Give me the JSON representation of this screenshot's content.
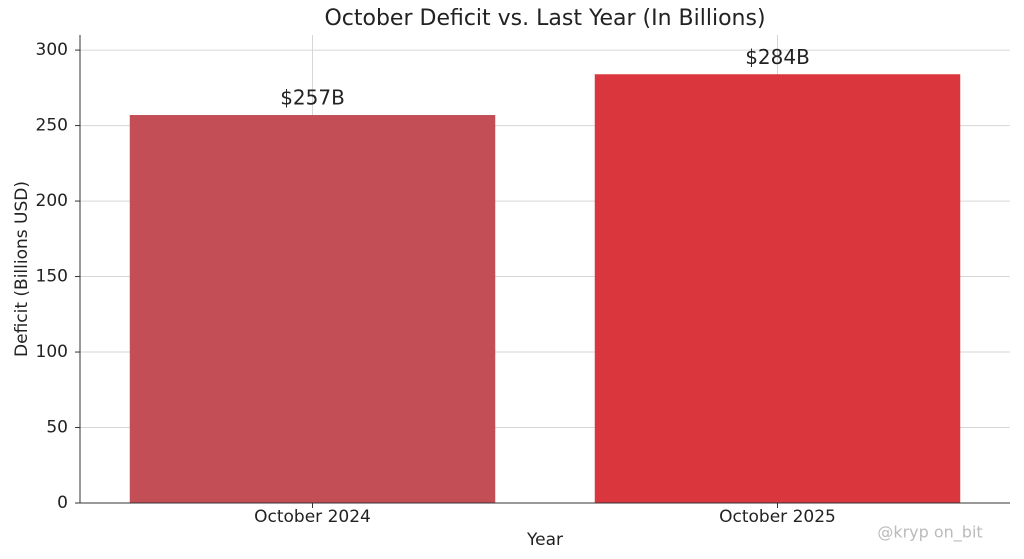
{
  "chart_data": {
    "type": "bar",
    "title": "October Deficit vs. Last Year (In Billions)",
    "x_label": "Year",
    "y_label": "Deficit (Billions USD)",
    "categories": [
      "October 2024",
      "October 2025"
    ],
    "values": [
      257,
      284
    ],
    "value_labels": [
      "$257B",
      "$284B"
    ],
    "colors": [
      "#c44e55",
      "#d9363e"
    ],
    "ylim": [
      0,
      310
    ],
    "yticks": [
      0,
      50,
      100,
      150,
      200,
      250,
      300
    ],
    "grid": true
  },
  "watermark": "@kryp on_bit"
}
